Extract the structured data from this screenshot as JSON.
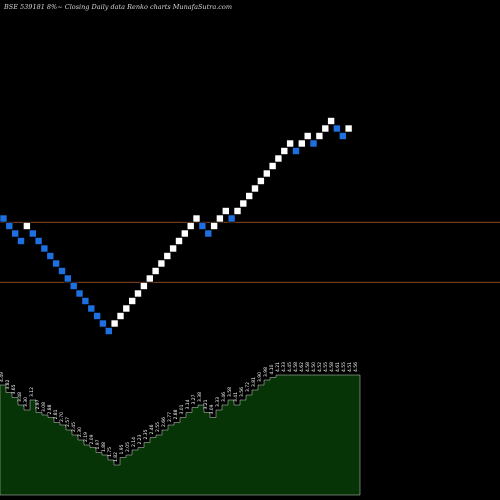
{
  "chart_data": {
    "type": "renko",
    "title": "BSE 539181 8%~  Closing Daily data  Renko  charts MunafaSutra.com",
    "colors": {
      "background": "#000000",
      "up_brick": "#ffffff",
      "down_brick": "#1e6fe0",
      "reference_line": "#b0622a",
      "volume_fill": "#063406",
      "volume_outline": "#d0d0d0"
    },
    "reference_levels": [
      35.5,
      27.5
    ],
    "bricks": [
      {
        "dir": "down",
        "y": 36.0
      },
      {
        "dir": "down",
        "y": 35.0
      },
      {
        "dir": "down",
        "y": 34.0
      },
      {
        "dir": "down",
        "y": 33.0
      },
      {
        "dir": "up",
        "y": 35.0
      },
      {
        "dir": "down",
        "y": 34.0
      },
      {
        "dir": "down",
        "y": 33.0
      },
      {
        "dir": "down",
        "y": 32.0
      },
      {
        "dir": "down",
        "y": 31.0
      },
      {
        "dir": "down",
        "y": 30.0
      },
      {
        "dir": "down",
        "y": 29.0
      },
      {
        "dir": "down",
        "y": 28.0
      },
      {
        "dir": "down",
        "y": 27.0
      },
      {
        "dir": "down",
        "y": 26.0
      },
      {
        "dir": "down",
        "y": 25.0
      },
      {
        "dir": "down",
        "y": 24.0
      },
      {
        "dir": "down",
        "y": 23.0
      },
      {
        "dir": "down",
        "y": 22.0
      },
      {
        "dir": "down",
        "y": 21.0
      },
      {
        "dir": "up",
        "y": 22.0
      },
      {
        "dir": "up",
        "y": 23.0
      },
      {
        "dir": "up",
        "y": 24.0
      },
      {
        "dir": "up",
        "y": 25.0
      },
      {
        "dir": "up",
        "y": 26.0
      },
      {
        "dir": "up",
        "y": 27.0
      },
      {
        "dir": "up",
        "y": 28.0
      },
      {
        "dir": "up",
        "y": 29.0
      },
      {
        "dir": "up",
        "y": 30.0
      },
      {
        "dir": "up",
        "y": 31.0
      },
      {
        "dir": "up",
        "y": 32.0
      },
      {
        "dir": "up",
        "y": 33.0
      },
      {
        "dir": "up",
        "y": 34.0
      },
      {
        "dir": "up",
        "y": 35.0
      },
      {
        "dir": "up",
        "y": 36.0
      },
      {
        "dir": "down",
        "y": 35.0
      },
      {
        "dir": "down",
        "y": 34.0
      },
      {
        "dir": "up",
        "y": 35.0
      },
      {
        "dir": "up",
        "y": 36.0
      },
      {
        "dir": "up",
        "y": 37.0
      },
      {
        "dir": "down",
        "y": 36.0
      },
      {
        "dir": "up",
        "y": 37.0
      },
      {
        "dir": "up",
        "y": 38.0
      },
      {
        "dir": "up",
        "y": 39.0
      },
      {
        "dir": "up",
        "y": 40.0
      },
      {
        "dir": "up",
        "y": 41.0
      },
      {
        "dir": "up",
        "y": 42.0
      },
      {
        "dir": "up",
        "y": 43.0
      },
      {
        "dir": "up",
        "y": 44.0
      },
      {
        "dir": "up",
        "y": 45.0
      },
      {
        "dir": "up",
        "y": 46.0
      },
      {
        "dir": "down",
        "y": 45.0
      },
      {
        "dir": "up",
        "y": 46.0
      },
      {
        "dir": "up",
        "y": 47.0
      },
      {
        "dir": "down",
        "y": 46.0
      },
      {
        "dir": "up",
        "y": 47.0
      },
      {
        "dir": "up",
        "y": 48.0
      },
      {
        "dir": "up",
        "y": 49.0
      },
      {
        "dir": "down",
        "y": 48.0
      },
      {
        "dir": "down",
        "y": 47.0
      },
      {
        "dir": "up",
        "y": 48.0
      }
    ],
    "value_labels": [
      "4.49",
      "3.82",
      "3.65",
      "3.48",
      "3.30",
      "3.12",
      "2.97",
      "3.08",
      "2.88",
      "2.81",
      "2.70",
      "2.57",
      "2.45",
      "2.30",
      "2.19",
      "2.09",
      "1.97",
      "1.88",
      "1.75",
      "1.82",
      "1.95",
      "2.05",
      "2.14",
      "2.23",
      "2.35",
      "2.46",
      "2.55",
      "2.66",
      "2.77",
      "2.88",
      "3.01",
      "3.14",
      "3.27",
      "3.38",
      "3.21",
      "3.09",
      "3.33",
      "3.46",
      "3.58",
      "3.41",
      "3.56",
      "3.72",
      "3.81",
      "3.90",
      "3.98",
      "4.10",
      "4.21",
      "4.33",
      "4.45",
      "4.58",
      "4.62",
      "4.58",
      "4.50",
      "4.52",
      "4.55",
      "4.58",
      "4.61",
      "4.55",
      "4.51",
      "4.56"
    ],
    "volume_series": [
      4.4,
      4.1,
      3.9,
      3.6,
      3.4,
      3.8,
      3.3,
      3.2,
      3.1,
      2.9,
      2.8,
      2.6,
      2.4,
      2.2,
      2.0,
      1.9,
      1.7,
      1.6,
      1.4,
      1.2,
      1.5,
      1.6,
      1.8,
      1.9,
      2.1,
      2.3,
      2.4,
      2.6,
      2.8,
      2.9,
      3.1,
      3.3,
      3.5,
      3.6,
      3.3,
      3.1,
      3.4,
      3.6,
      3.8,
      3.6,
      3.8,
      4.0,
      4.2,
      4.4,
      4.6,
      4.7,
      4.8,
      4.8,
      4.8,
      4.8,
      4.8,
      4.8,
      4.8,
      4.8,
      4.8,
      4.8,
      4.8,
      4.8,
      4.8,
      4.8
    ],
    "volume_max": 6.0,
    "xlabel": "",
    "ylabel": ""
  }
}
